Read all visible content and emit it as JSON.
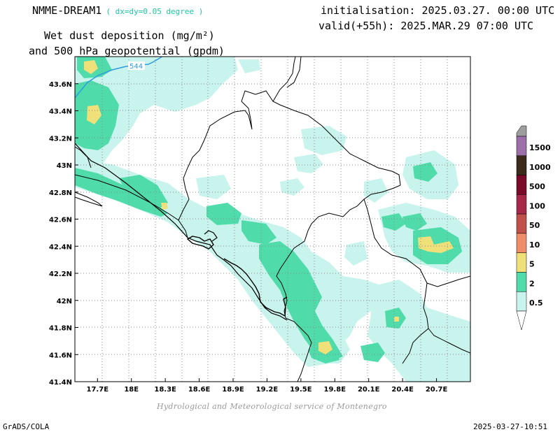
{
  "header": {
    "model": "NMME-DREAM1",
    "resolution": "( dx=dy=0.05 degree )",
    "variable_line1": "Wet dust deposition (mg/m²)",
    "variable_line2": "and 500 hPa geopotential (gpdm)",
    "initialisation": "initialisation: 2025.03.27. 00:00 UTC",
    "valid": "valid(+55h): 2025.MAR.29 07:00 UTC"
  },
  "map": {
    "lon_range": [
      17.5,
      21.0
    ],
    "lat_range": [
      41.4,
      43.8
    ],
    "lon_ticks": [
      "17.7E",
      "18E",
      "18.3E",
      "18.6E",
      "18.9E",
      "19.2E",
      "19.5E",
      "19.8E",
      "20.1E",
      "20.4E",
      "20.7E"
    ],
    "lon_tick_values": [
      17.7,
      18.0,
      18.3,
      18.6,
      18.9,
      19.2,
      19.5,
      19.8,
      20.1,
      20.4,
      20.7
    ],
    "lat_ticks": [
      "43.6N",
      "43.4N",
      "43.2N",
      "43N",
      "42.8N",
      "42.6N",
      "42.4N",
      "42.2N",
      "42N",
      "41.8N",
      "41.6N",
      "41.4N"
    ],
    "lat_tick_values": [
      43.6,
      43.4,
      43.2,
      43.0,
      42.8,
      42.6,
      42.4,
      42.2,
      42.0,
      41.8,
      41.6,
      41.4
    ],
    "contour_label": "544",
    "grid": true
  },
  "legend": {
    "levels": [
      "1500",
      "1000",
      "500",
      "100",
      "50",
      "10",
      "5",
      "2",
      "0.5"
    ],
    "colors": [
      "#9b6fa7",
      "#3b2b1a",
      "#7a0a2a",
      "#a8284a",
      "#c0504a",
      "#ef8d68",
      "#f0e07a",
      "#4fdcaa",
      "#c9f4ee"
    ]
  },
  "colors": {
    "light": "#c9f4ee",
    "medium": "#4fdcaa",
    "high": "#f0e07a",
    "contour": "#2f9be0"
  },
  "footer": {
    "credit": "Hydrological and Meteorological service of Montenegro",
    "software": "GrADS/COLA",
    "timestamp": "2025-03-27-10:51"
  }
}
